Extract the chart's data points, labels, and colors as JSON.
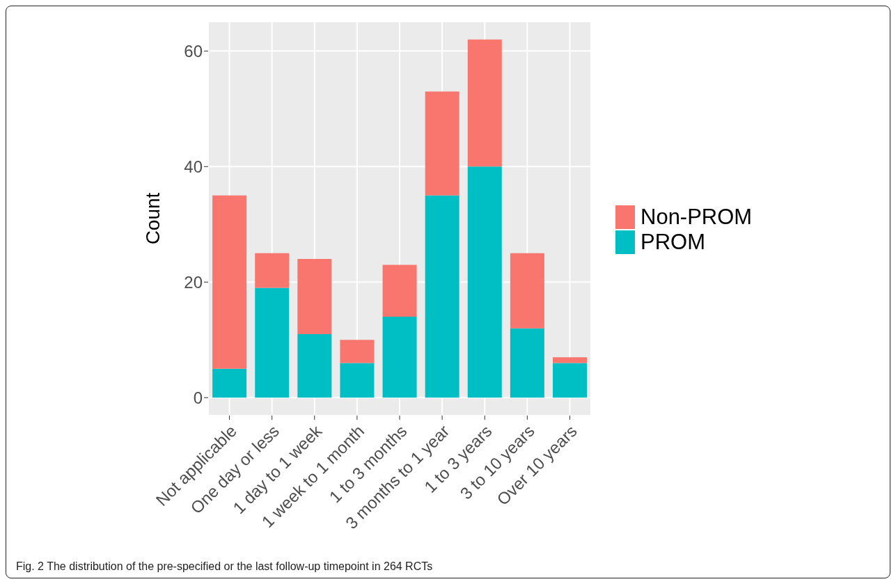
{
  "chart_data": {
    "type": "bar",
    "stacked": true,
    "ylabel": "Count",
    "categories": [
      "Not applicable",
      "One day or less",
      "1 day to 1 week",
      "1 week to 1 month",
      "1 to 3 months",
      "3 months to 1 year",
      "1 to 3 years",
      "3 to 10 years",
      "Over 10 years"
    ],
    "series": [
      {
        "name": "PROM",
        "color": "#00bfc4",
        "values": [
          5,
          19,
          11,
          6,
          14,
          35,
          40,
          12,
          6
        ]
      },
      {
        "name": "Non-PROM",
        "color": "#f8766d",
        "values": [
          30,
          6,
          13,
          4,
          9,
          18,
          22,
          13,
          1
        ]
      }
    ],
    "ylim": [
      -3.1,
      65.1
    ],
    "yticks": [
      0,
      20,
      40,
      60
    ],
    "grid": true,
    "legend": "right",
    "annotations": [
      "Fig. 2 The distribution of the pre-specified or the last follow-up timepoint in 264 RCTs"
    ]
  }
}
